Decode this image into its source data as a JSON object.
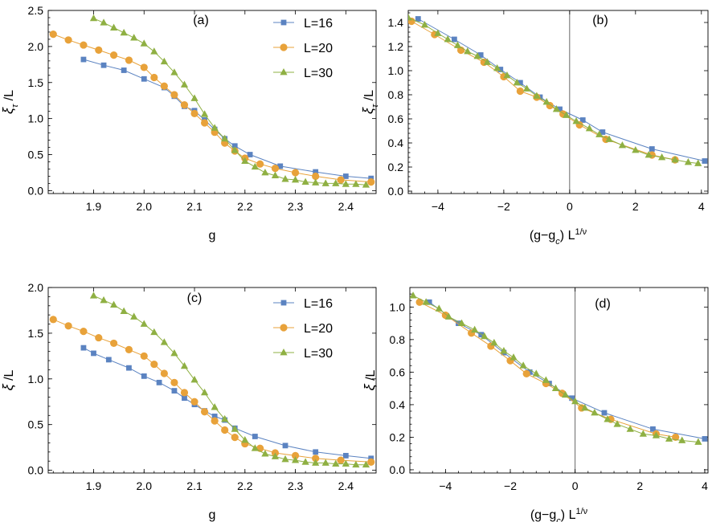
{
  "colors": {
    "L16": "#5b83c1",
    "L20": "#e8a23a",
    "L30": "#8fb043"
  },
  "chart_data": [
    {
      "id": "a",
      "type": "line",
      "title": "(a)",
      "xlabel": "g",
      "ylabel_main": "ξ",
      "ylabel_sub": "τ",
      "ylabel_tail": " /L",
      "xlim": [
        1.81,
        2.46
      ],
      "ylim": [
        -0.04,
        2.5
      ],
      "xticks": [
        1.9,
        2.0,
        2.1,
        2.2,
        2.3,
        2.4
      ],
      "xtick_labels": [
        "1.9",
        "2.0",
        "2.1",
        "2.2",
        "2.3",
        "2.4"
      ],
      "yticks": [
        0.0,
        0.5,
        1.0,
        1.5,
        2.0,
        2.5
      ],
      "ytick_labels": [
        "0.0",
        "0.5",
        "1.0",
        "1.5",
        "2.0",
        "2.5"
      ],
      "legend": [
        "L=16",
        "L=20",
        "L=30"
      ],
      "series": [
        {
          "name": "L=16",
          "marker": "square",
          "color": "L16",
          "x": [
            1.88,
            1.92,
            1.96,
            2.0,
            2.04,
            2.06,
            2.08,
            2.1,
            2.12,
            2.14,
            2.16,
            2.18,
            2.21,
            2.27,
            2.34,
            2.4,
            2.45
          ],
          "y": [
            1.82,
            1.74,
            1.67,
            1.55,
            1.43,
            1.31,
            1.17,
            1.11,
            0.98,
            0.85,
            0.72,
            0.62,
            0.5,
            0.34,
            0.26,
            0.2,
            0.17
          ]
        },
        {
          "name": "L=20",
          "marker": "circle",
          "color": "L20",
          "x": [
            1.82,
            1.85,
            1.88,
            1.91,
            1.94,
            1.97,
            2.0,
            2.02,
            2.04,
            2.06,
            2.08,
            2.1,
            2.12,
            2.14,
            2.16,
            2.18,
            2.2,
            2.23,
            2.26,
            2.3,
            2.34,
            2.39,
            2.45
          ],
          "y": [
            2.17,
            2.09,
            2.02,
            1.95,
            1.88,
            1.81,
            1.71,
            1.57,
            1.45,
            1.33,
            1.19,
            1.07,
            0.94,
            0.81,
            0.66,
            0.55,
            0.45,
            0.37,
            0.31,
            0.25,
            0.2,
            0.15,
            0.12
          ]
        },
        {
          "name": "L=30",
          "marker": "triangle",
          "color": "L30",
          "x": [
            1.9,
            1.92,
            1.94,
            1.96,
            1.98,
            2.0,
            2.02,
            2.04,
            2.06,
            2.08,
            2.1,
            2.12,
            2.14,
            2.16,
            2.18,
            2.2,
            2.22,
            2.24,
            2.26,
            2.28,
            2.3,
            2.32,
            2.34,
            2.36,
            2.38,
            2.4,
            2.42,
            2.44
          ],
          "y": [
            2.39,
            2.33,
            2.26,
            2.19,
            2.12,
            2.04,
            1.93,
            1.79,
            1.64,
            1.47,
            1.28,
            1.06,
            0.87,
            0.72,
            0.56,
            0.41,
            0.33,
            0.25,
            0.21,
            0.16,
            0.15,
            0.12,
            0.11,
            0.1,
            0.1,
            0.09,
            0.09,
            0.08
          ]
        }
      ]
    },
    {
      "id": "b",
      "type": "line",
      "title": "(b)",
      "xlabel_main": "(g−g",
      "xlabel_sub": "c",
      "xlabel_tail": ") L",
      "xlabel_sup": "1/ν",
      "ylabel_main": "ξ",
      "ylabel_sub": "τ",
      "ylabel_tail": " /L",
      "xlim": [
        -4.9,
        4.2
      ],
      "ylim": [
        -0.02,
        1.5
      ],
      "xticks": [
        -4,
        -2,
        0,
        2,
        4
      ],
      "xtick_labels": [
        "−4",
        "−2",
        "0",
        "2",
        "4"
      ],
      "yticks": [
        0.0,
        0.2,
        0.4,
        0.6,
        0.8,
        1.0,
        1.2,
        1.4
      ],
      "ytick_labels": [
        "0.0",
        "0.2",
        "0.4",
        "0.6",
        "0.8",
        "1.0",
        "1.2",
        "1.4"
      ],
      "series": [
        {
          "name": "L=16",
          "marker": "square",
          "color": "L16",
          "x": [
            -4.6,
            -3.5,
            -2.7,
            -2.1,
            -1.5,
            -0.9,
            -0.3,
            0.4,
            1.0,
            2.5,
            4.1
          ],
          "y": [
            1.43,
            1.26,
            1.13,
            1.01,
            0.9,
            0.78,
            0.68,
            0.59,
            0.49,
            0.35,
            0.25
          ]
        },
        {
          "name": "L=20",
          "marker": "circle",
          "color": "L20",
          "x": [
            -4.8,
            -4.1,
            -3.3,
            -2.6,
            -2.0,
            -1.5,
            -1.0,
            -0.6,
            -0.2,
            0.3,
            1.1,
            2.5,
            3.2
          ],
          "y": [
            1.41,
            1.3,
            1.17,
            1.07,
            0.95,
            0.83,
            0.78,
            0.71,
            0.64,
            0.55,
            0.43,
            0.3,
            0.26
          ]
        },
        {
          "name": "L=30",
          "marker": "triangle",
          "color": "L30",
          "x": [
            -4.9,
            -4.4,
            -4.0,
            -3.7,
            -3.4,
            -3.1,
            -2.8,
            -2.5,
            -2.2,
            -1.9,
            -1.6,
            -1.3,
            -1.0,
            -0.7,
            -0.4,
            -0.1,
            0.2,
            0.6,
            0.9,
            1.2,
            1.6,
            2.0,
            2.4,
            2.8,
            3.2,
            3.6,
            3.9
          ],
          "y": [
            1.44,
            1.38,
            1.31,
            1.26,
            1.21,
            1.16,
            1.12,
            1.07,
            1.02,
            0.96,
            0.9,
            0.85,
            0.79,
            0.74,
            0.68,
            0.63,
            0.58,
            0.52,
            0.47,
            0.43,
            0.38,
            0.34,
            0.3,
            0.28,
            0.26,
            0.24,
            0.23
          ]
        }
      ]
    },
    {
      "id": "c",
      "type": "line",
      "title": "(c)",
      "xlabel": "g",
      "ylabel_main": "ξ",
      "ylabel_sub": "",
      "ylabel_tail": " /L",
      "xlim": [
        1.81,
        2.46
      ],
      "ylim": [
        -0.03,
        2.0
      ],
      "xticks": [
        1.9,
        2.0,
        2.1,
        2.2,
        2.3,
        2.4
      ],
      "xtick_labels": [
        "1.9",
        "2.0",
        "2.1",
        "2.2",
        "2.3",
        "2.4"
      ],
      "yticks": [
        0.0,
        0.5,
        1.0,
        1.5,
        2.0
      ],
      "ytick_labels": [
        "0.0",
        "0.5",
        "1.0",
        "1.5",
        "2.0"
      ],
      "legend": [
        "L=16",
        "L=20",
        "L=30"
      ],
      "series": [
        {
          "name": "L=16",
          "marker": "square",
          "color": "L16",
          "x": [
            1.88,
            1.9,
            1.93,
            1.97,
            2.0,
            2.03,
            2.06,
            2.08,
            2.1,
            2.12,
            2.14,
            2.16,
            2.18,
            2.22,
            2.28,
            2.34,
            2.4,
            2.45
          ],
          "y": [
            1.34,
            1.28,
            1.21,
            1.12,
            1.03,
            0.96,
            0.87,
            0.79,
            0.72,
            0.65,
            0.59,
            0.55,
            0.46,
            0.37,
            0.27,
            0.2,
            0.16,
            0.13
          ]
        },
        {
          "name": "L=20",
          "marker": "circle",
          "color": "L20",
          "x": [
            1.82,
            1.85,
            1.88,
            1.91,
            1.94,
            1.97,
            2.0,
            2.02,
            2.04,
            2.06,
            2.08,
            2.1,
            2.12,
            2.14,
            2.16,
            2.18,
            2.2,
            2.23,
            2.26,
            2.3,
            2.34,
            2.39,
            2.45
          ],
          "y": [
            1.65,
            1.58,
            1.52,
            1.45,
            1.39,
            1.32,
            1.25,
            1.16,
            1.06,
            0.96,
            0.85,
            0.75,
            0.64,
            0.54,
            0.44,
            0.36,
            0.29,
            0.24,
            0.19,
            0.16,
            0.13,
            0.11,
            0.09
          ]
        },
        {
          "name": "L=30",
          "marker": "triangle",
          "color": "L30",
          "x": [
            1.9,
            1.92,
            1.94,
            1.96,
            1.98,
            2.0,
            2.02,
            2.04,
            2.06,
            2.08,
            2.1,
            2.12,
            2.14,
            2.16,
            2.18,
            2.2,
            2.22,
            2.24,
            2.26,
            2.28,
            2.3,
            2.32,
            2.34,
            2.36,
            2.38,
            2.4,
            2.42,
            2.44
          ],
          "y": [
            1.91,
            1.86,
            1.81,
            1.74,
            1.68,
            1.6,
            1.51,
            1.4,
            1.28,
            1.14,
            0.99,
            0.85,
            0.69,
            0.56,
            0.45,
            0.33,
            0.24,
            0.18,
            0.15,
            0.12,
            0.11,
            0.09,
            0.08,
            0.08,
            0.07,
            0.07,
            0.06,
            0.06
          ]
        }
      ]
    },
    {
      "id": "d",
      "type": "line",
      "title": "(d)",
      "xlabel_main": "(g−g",
      "xlabel_sub": "c",
      "xlabel_tail": ") L",
      "xlabel_sup": "1/ν",
      "ylabel_main": "ξ",
      "ylabel_sub": "",
      "ylabel_tail": " /L",
      "xlim": [
        -5.1,
        4.1
      ],
      "ylim": [
        -0.02,
        1.12
      ],
      "xticks": [
        -4,
        -2,
        0,
        2,
        4
      ],
      "xtick_labels": [
        "−4",
        "−2",
        "0",
        "2",
        "4"
      ],
      "yticks": [
        0.0,
        0.2,
        0.4,
        0.6,
        0.8,
        1.0
      ],
      "ytick_labels": [
        "0.0",
        "0.2",
        "0.4",
        "0.6",
        "0.8",
        "1.0"
      ],
      "series": [
        {
          "name": "L=16",
          "marker": "square",
          "color": "L16",
          "x": [
            -4.5,
            -3.6,
            -2.9,
            -2.2,
            -1.4,
            -0.8,
            -0.1,
            0.9,
            2.4,
            4.0
          ],
          "y": [
            1.03,
            0.9,
            0.83,
            0.72,
            0.6,
            0.53,
            0.44,
            0.35,
            0.25,
            0.19
          ]
        },
        {
          "name": "L=20",
          "marker": "circle",
          "color": "L20",
          "x": [
            -4.8,
            -4.0,
            -3.2,
            -2.6,
            -2.0,
            -1.5,
            -0.9,
            -0.4,
            0.2,
            1.1,
            2.5,
            3.1
          ],
          "y": [
            1.03,
            0.95,
            0.84,
            0.76,
            0.67,
            0.59,
            0.53,
            0.47,
            0.38,
            0.31,
            0.22,
            0.2
          ]
        },
        {
          "name": "L=30",
          "marker": "triangle",
          "color": "L30",
          "x": [
            -5.0,
            -4.6,
            -4.2,
            -3.9,
            -3.5,
            -3.1,
            -2.8,
            -2.5,
            -2.2,
            -1.9,
            -1.6,
            -1.2,
            -0.9,
            -0.6,
            -0.3,
            0.0,
            0.3,
            0.6,
            1.0,
            1.3,
            1.7,
            2.1,
            2.5,
            2.9,
            3.3,
            3.8
          ],
          "y": [
            1.07,
            1.03,
            0.99,
            0.94,
            0.9,
            0.86,
            0.82,
            0.78,
            0.73,
            0.69,
            0.64,
            0.59,
            0.55,
            0.5,
            0.46,
            0.42,
            0.38,
            0.35,
            0.31,
            0.28,
            0.25,
            0.22,
            0.21,
            0.19,
            0.18,
            0.17
          ]
        }
      ]
    }
  ]
}
